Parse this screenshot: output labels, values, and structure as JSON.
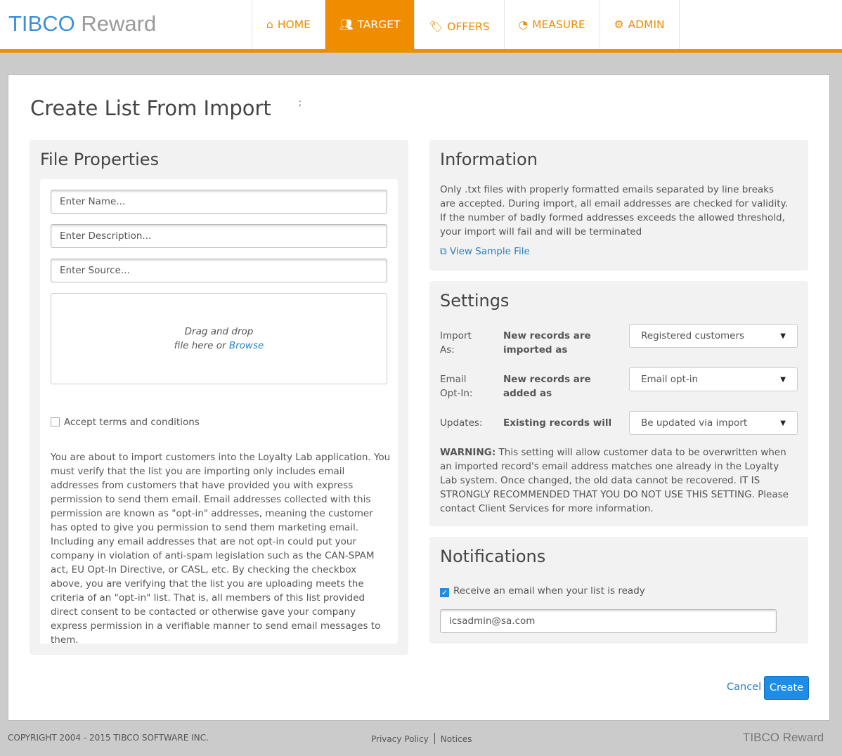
{
  "header": {
    "logo_brand": "TIBCO",
    "logo_product": "Reward",
    "nav": [
      {
        "label": "HOME",
        "icon": "home-icon"
      },
      {
        "label": "TARGET",
        "icon": "users-icon",
        "active": true
      },
      {
        "label": "OFFERS",
        "icon": "tags-icon"
      },
      {
        "label": "MEASURE",
        "icon": "dashboard-icon"
      },
      {
        "label": "ADMIN",
        "icon": "cogs-icon"
      }
    ]
  },
  "page": {
    "title": "Create List From Import",
    "stray": ";"
  },
  "file_properties": {
    "title": "File Properties",
    "name_placeholder": "Enter Name...",
    "description_placeholder": "Enter Description...",
    "source_placeholder": "Enter Source...",
    "drop_line1": "Drag and drop",
    "drop_line2": "file here or ",
    "browse": "Browse",
    "accept_label": "Accept terms and conditions",
    "accept_checked": false,
    "terms_text": "You are about to import customers into the Loyalty Lab application. You must verify that the list you are importing only includes email addresses from customers that have provided you with express permission to send them email. Email addresses collected with this permission are known as \"opt-in\" addresses, meaning the customer has opted to give you permission to send them marketing email. Including any email addresses that are not opt-in could put your company in violation of anti-spam legislation such as the CAN-SPAM act, EU Opt-In Directive, or CASL, etc. By checking the checkbox above, you are verifying that the list you are uploading meets the criteria of an \"opt-in\" list. That is, all members of this list provided direct consent to be contacted or otherwise gave your company express permission in a verifiable manner to send email messages to them."
  },
  "information": {
    "title": "Information",
    "text": "Only .txt files with properly formatted emails separated by line breaks are accepted. During import, all email addresses are checked for validity. If the number of badly formed addresses exceeds the allowed threshold, your import will fail and will be terminated",
    "sample_link": "View Sample File"
  },
  "settings": {
    "title": "Settings",
    "rows": [
      {
        "label1": "Import",
        "label2": "As:",
        "desc1": "New records are",
        "desc2": "imported as",
        "value": "Registered customers"
      },
      {
        "label1": "Email",
        "label2": "Opt-In:",
        "desc1": "New records are",
        "desc2": "added as",
        "value": "Email opt-in"
      },
      {
        "label1": "Updates:",
        "label2": "",
        "desc1": "Existing records will",
        "desc2": "",
        "value": "Be updated via import"
      }
    ],
    "warning_label": "WARNING:",
    "warning_text": " This setting will allow customer data to be overwritten when an imported record's email address matches one already in the Loyalty Lab system. Once changed, the old data cannot be recovered. IT IS STRONGLY RECOMMENDED THAT YOU DO NOT USE THIS SETTING. Please contact Client Services for more information."
  },
  "notifications": {
    "title": "Notifications",
    "receive_label": "Receive an email when your list is ready",
    "receive_checked": true,
    "email": "icsadmin@sa.com"
  },
  "actions": {
    "cancel": "Cancel",
    "create": "Create"
  },
  "footer": {
    "copyright": "COPYRIGHT 2004 - 2015 TIBCO SOFTWARE INC.",
    "privacy": "Privacy Policy",
    "notices": "Notices",
    "logo_brand": "TIBCO",
    "logo_product": "Reward"
  },
  "colors": {
    "accent": "#f08c00",
    "link": "#2a7fc1",
    "primary_button": "#1f8ce6"
  }
}
